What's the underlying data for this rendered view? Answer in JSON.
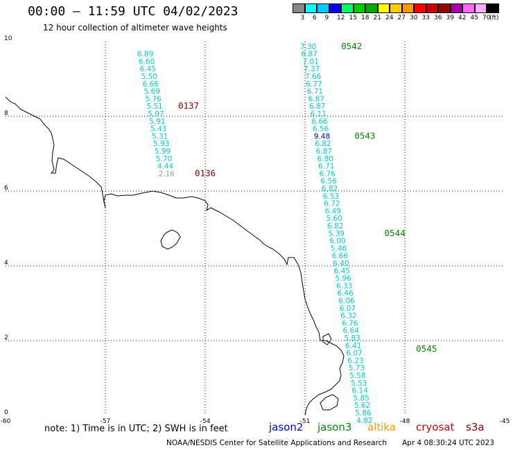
{
  "header": {
    "title": "00:00 – 11:59 UTC 04/02/2023",
    "subtitle": "12 hour collection of altimeter wave heights"
  },
  "footer": {
    "note": "note:  1) Time is in UTC;  2) SWH is in feet",
    "credit": "NOAA/NESDIS Center for Satellite Applications and Research",
    "timestamp": "Apr  4 08:30:24 UTC 2023"
  },
  "satellites": [
    {
      "name": "jason2",
      "color": "#0000cc"
    },
    {
      "name": "jason3",
      "color": "#008800"
    },
    {
      "name": "altika",
      "color": "#ff9900"
    },
    {
      "name": "cryosat",
      "color": "#cc0000"
    },
    {
      "name": "s3a",
      "color": "#880000"
    }
  ],
  "colorbar": {
    "unit": "(ft)",
    "labels": [
      "3",
      "6",
      "9",
      "12",
      "15",
      "18",
      "21",
      "24",
      "27",
      "30",
      "33",
      "36",
      "39",
      "42",
      "45",
      "70"
    ],
    "colors": [
      "#888888",
      "#00ffff",
      "#00ccff",
      "#0000ff",
      "#00ff66",
      "#00cc00",
      "#00aa00",
      "#ffff00",
      "#ffcc00",
      "#ff9900",
      "#ff0000",
      "#cc0000",
      "#990000",
      "#aa00aa",
      "#ff66ff",
      "#ffaaff",
      "#000000"
    ]
  },
  "map": {
    "lon_range": [
      -60,
      -45
    ],
    "lat_range": [
      0,
      10
    ],
    "lon_ticks": [
      "-60",
      "-57",
      "-54",
      "-51",
      "-48",
      "-45"
    ],
    "lat_ticks": [
      "10",
      "8",
      "6",
      "4",
      "2",
      "0"
    ]
  },
  "tracks": [
    {
      "id": "left",
      "points": [
        {
          "lon": -55.8,
          "lat": 9.6,
          "v": "6.89",
          "c": "#00cccc"
        },
        {
          "lon": -55.76,
          "lat": 9.4,
          "v": "6.60",
          "c": "#00cccc"
        },
        {
          "lon": -55.72,
          "lat": 9.2,
          "v": "6.45",
          "c": "#00cccc"
        },
        {
          "lon": -55.68,
          "lat": 9.0,
          "v": "5.50",
          "c": "#00cccc"
        },
        {
          "lon": -55.64,
          "lat": 8.8,
          "v": "6.66",
          "c": "#00cccc"
        },
        {
          "lon": -55.6,
          "lat": 8.6,
          "v": "5.69",
          "c": "#00cccc"
        },
        {
          "lon": -55.56,
          "lat": 8.4,
          "v": "5.76",
          "c": "#00cccc"
        },
        {
          "lon": -55.52,
          "lat": 8.2,
          "v": "5.51",
          "c": "#00cccc"
        },
        {
          "lon": -55.48,
          "lat": 8.0,
          "v": "5.97",
          "c": "#00cccc"
        },
        {
          "lon": -55.44,
          "lat": 7.8,
          "v": "5.91",
          "c": "#00cccc"
        },
        {
          "lon": -55.4,
          "lat": 7.6,
          "v": "5.43",
          "c": "#00cccc"
        },
        {
          "lon": -55.36,
          "lat": 7.4,
          "v": "5.31",
          "c": "#00cccc"
        },
        {
          "lon": -55.32,
          "lat": 7.2,
          "v": "5.93",
          "c": "#00cccc"
        },
        {
          "lon": -55.28,
          "lat": 7.0,
          "v": "5.99",
          "c": "#00cccc"
        },
        {
          "lon": -55.24,
          "lat": 6.8,
          "v": "5.70",
          "c": "#00cccc"
        },
        {
          "lon": -55.2,
          "lat": 6.6,
          "v": "4.44",
          "c": "#00cccc"
        },
        {
          "lon": -55.16,
          "lat": 6.4,
          "v": "2.16",
          "c": "#999999"
        }
      ],
      "times": [
        {
          "lon": -54.5,
          "lat": 8.2,
          "t": "0137",
          "c": "#880000"
        },
        {
          "lon": -54.0,
          "lat": 6.4,
          "t": "0136",
          "c": "#880000"
        }
      ]
    },
    {
      "id": "right",
      "points": [
        {
          "lon": -50.9,
          "lat": 9.8,
          "v": "7.30",
          "c": "#00cccc"
        },
        {
          "lon": -50.87,
          "lat": 9.6,
          "v": "6.87",
          "c": "#00cccc"
        },
        {
          "lon": -50.83,
          "lat": 9.4,
          "v": "7.01",
          "c": "#00cccc"
        },
        {
          "lon": -50.8,
          "lat": 9.2,
          "v": "7.37",
          "c": "#00cccc"
        },
        {
          "lon": -50.76,
          "lat": 9.0,
          "v": "7.66",
          "c": "#00cccc"
        },
        {
          "lon": -50.73,
          "lat": 8.8,
          "v": "6.77",
          "c": "#00cccc"
        },
        {
          "lon": -50.7,
          "lat": 8.6,
          "v": "6.71",
          "c": "#00cccc"
        },
        {
          "lon": -50.66,
          "lat": 8.4,
          "v": "6.87",
          "c": "#00cccc"
        },
        {
          "lon": -50.63,
          "lat": 8.2,
          "v": "6.87",
          "c": "#00cccc"
        },
        {
          "lon": -50.6,
          "lat": 8.0,
          "v": "6.11",
          "c": "#00cccc"
        },
        {
          "lon": -50.56,
          "lat": 7.8,
          "v": "6.66",
          "c": "#00cccc"
        },
        {
          "lon": -50.53,
          "lat": 7.6,
          "v": "6.56",
          "c": "#00cccc"
        },
        {
          "lon": -50.49,
          "lat": 7.4,
          "v": "9.48",
          "c": "#0000cc"
        },
        {
          "lon": -50.46,
          "lat": 7.2,
          "v": "6.82",
          "c": "#00cccc"
        },
        {
          "lon": -50.43,
          "lat": 7.0,
          "v": "6.87",
          "c": "#00cccc"
        },
        {
          "lon": -50.39,
          "lat": 6.8,
          "v": "6.80",
          "c": "#00cccc"
        },
        {
          "lon": -50.36,
          "lat": 6.6,
          "v": "6.71",
          "c": "#00cccc"
        },
        {
          "lon": -50.33,
          "lat": 6.4,
          "v": "6.76",
          "c": "#00cccc"
        },
        {
          "lon": -50.29,
          "lat": 6.2,
          "v": "6.56",
          "c": "#00cccc"
        },
        {
          "lon": -50.26,
          "lat": 6.0,
          "v": "6.82",
          "c": "#00cccc"
        },
        {
          "lon": -50.22,
          "lat": 5.8,
          "v": "6.53",
          "c": "#00cccc"
        },
        {
          "lon": -50.19,
          "lat": 5.6,
          "v": "6.72",
          "c": "#00cccc"
        },
        {
          "lon": -50.16,
          "lat": 5.4,
          "v": "6.49",
          "c": "#00cccc"
        },
        {
          "lon": -50.12,
          "lat": 5.2,
          "v": "5.60",
          "c": "#00cccc"
        },
        {
          "lon": -50.09,
          "lat": 5.0,
          "v": "6.82",
          "c": "#00cccc"
        },
        {
          "lon": -50.06,
          "lat": 4.8,
          "v": "5.39",
          "c": "#00cccc"
        },
        {
          "lon": -50.02,
          "lat": 4.6,
          "v": "6.00",
          "c": "#00cccc"
        },
        {
          "lon": -49.99,
          "lat": 4.4,
          "v": "5.46",
          "c": "#00cccc"
        },
        {
          "lon": -49.95,
          "lat": 4.2,
          "v": "6.66",
          "c": "#00cccc"
        },
        {
          "lon": -49.92,
          "lat": 4.0,
          "v": "6.40",
          "c": "#00cccc"
        },
        {
          "lon": -49.89,
          "lat": 3.8,
          "v": "6.45",
          "c": "#00cccc"
        },
        {
          "lon": -49.85,
          "lat": 3.6,
          "v": "5.96",
          "c": "#00cccc"
        },
        {
          "lon": -49.82,
          "lat": 3.4,
          "v": "6.33",
          "c": "#00cccc"
        },
        {
          "lon": -49.79,
          "lat": 3.2,
          "v": "6.46",
          "c": "#00cccc"
        },
        {
          "lon": -49.75,
          "lat": 3.0,
          "v": "6.06",
          "c": "#00cccc"
        },
        {
          "lon": -49.72,
          "lat": 2.8,
          "v": "6.07",
          "c": "#00cccc"
        },
        {
          "lon": -49.69,
          "lat": 2.6,
          "v": "6.32",
          "c": "#00cccc"
        },
        {
          "lon": -49.65,
          "lat": 2.4,
          "v": "6.76",
          "c": "#00cccc"
        },
        {
          "lon": -49.62,
          "lat": 2.2,
          "v": "6.64",
          "c": "#00cccc"
        },
        {
          "lon": -49.58,
          "lat": 2.0,
          "v": "5.83",
          "c": "#00cccc"
        },
        {
          "lon": -49.55,
          "lat": 1.8,
          "v": "6.41",
          "c": "#00cccc"
        },
        {
          "lon": -49.52,
          "lat": 1.6,
          "v": "6.07",
          "c": "#00cccc"
        },
        {
          "lon": -49.48,
          "lat": 1.4,
          "v": "6.23",
          "c": "#00cccc"
        },
        {
          "lon": -49.45,
          "lat": 1.2,
          "v": "5.73",
          "c": "#00cccc"
        },
        {
          "lon": -49.42,
          "lat": 1.0,
          "v": "5.58",
          "c": "#00cccc"
        },
        {
          "lon": -49.38,
          "lat": 0.8,
          "v": "5.53",
          "c": "#00cccc"
        },
        {
          "lon": -49.35,
          "lat": 0.6,
          "v": "6.14",
          "c": "#00cccc"
        },
        {
          "lon": -49.31,
          "lat": 0.4,
          "v": "5.85",
          "c": "#00cccc"
        },
        {
          "lon": -49.28,
          "lat": 0.2,
          "v": "5.62",
          "c": "#00cccc"
        },
        {
          "lon": -49.25,
          "lat": 0.0,
          "v": "5.86",
          "c": "#00cccc"
        },
        {
          "lon": -49.21,
          "lat": -0.2,
          "v": "4.82",
          "c": "#00cccc"
        }
      ],
      "times": [
        {
          "lon": -49.6,
          "lat": 9.8,
          "t": "0542",
          "c": "#008800"
        },
        {
          "lon": -49.2,
          "lat": 7.4,
          "t": "0543",
          "c": "#008800"
        },
        {
          "lon": -48.3,
          "lat": 4.8,
          "t": "0544",
          "c": "#008800"
        },
        {
          "lon": -47.35,
          "lat": 1.7,
          "t": "0545",
          "c": "#008800"
        }
      ]
    }
  ]
}
